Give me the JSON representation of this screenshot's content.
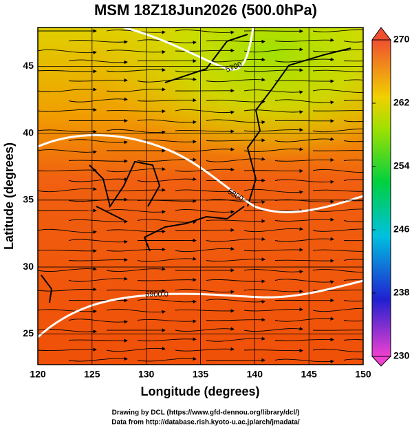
{
  "title": "MSM 18Z18Jun2026 (500.0hPa)",
  "x_axis": {
    "label": "Longitude (degrees)",
    "range": [
      120,
      150
    ],
    "ticks": [
      120,
      125,
      130,
      135,
      140,
      145,
      150
    ]
  },
  "y_axis": {
    "label": "Latitude  (degrees)",
    "range": [
      22.7,
      47.9
    ],
    "ticks": [
      25,
      30,
      35,
      40,
      45
    ]
  },
  "colorbar": {
    "range": [
      230,
      270
    ],
    "ticks": [
      230,
      238,
      246,
      254,
      262,
      270
    ]
  },
  "contour_labels": [
    "5700",
    "5800",
    "5900.0"
  ],
  "credits": [
    "Drawing by DCL (https://www.gfd-dennou.org/library/dcl/)",
    "Data from http://database.rish.kyoto-u.ac.jp/arch/jmadata/"
  ]
}
